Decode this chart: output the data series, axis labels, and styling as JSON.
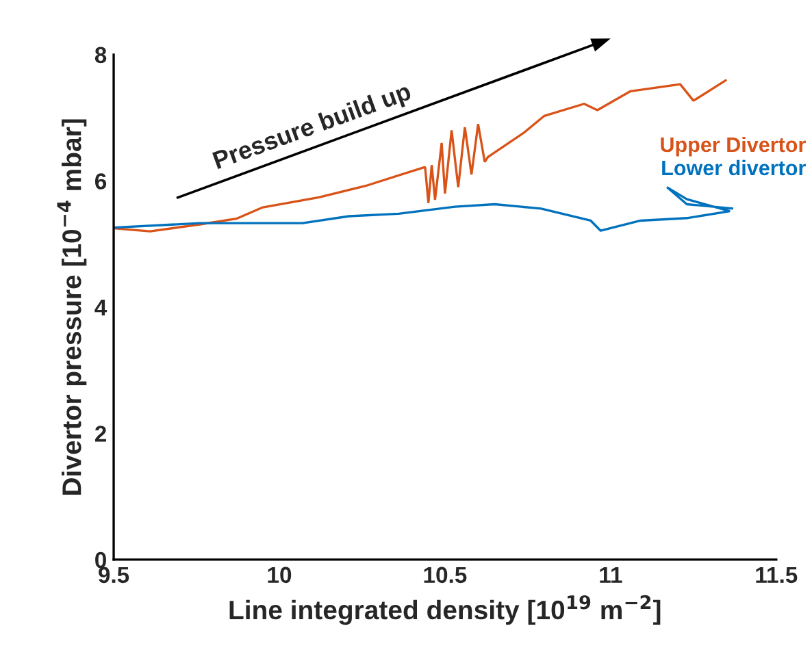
{
  "chart_data": {
    "type": "line",
    "xlabel": "Line integrated density [10$^{19}$ m$^{−2}$]",
    "ylabel": "Divertor pressure [10$^{−4}$ mbar]",
    "annotations": [
      "Pressure build up"
    ],
    "xlim": [
      9.5,
      11.5
    ],
    "xticks": [
      9.5,
      10,
      10.5,
      11,
      11.5
    ],
    "ylim": [
      0,
      8
    ],
    "yticks": [
      0,
      2,
      4,
      6,
      8
    ],
    "grid": false,
    "legend": false,
    "series": [
      {
        "name": "Upper Divertor",
        "color": "#d95319",
        "x": [
          9.5,
          9.61,
          9.76,
          9.87,
          9.95,
          10.12,
          10.26,
          10.44,
          10.45,
          10.46,
          10.47,
          10.49,
          10.5,
          10.52,
          10.54,
          10.56,
          10.58,
          10.6,
          10.62,
          10.63,
          10.74,
          10.8,
          10.92,
          10.96,
          11.06,
          11.21,
          11.25,
          11.35
        ],
        "values": [
          5.25,
          5.2,
          5.31,
          5.4,
          5.58,
          5.74,
          5.92,
          6.22,
          5.65,
          6.25,
          5.7,
          6.6,
          5.8,
          6.8,
          5.9,
          6.85,
          6.1,
          6.9,
          6.3,
          6.38,
          6.77,
          7.03,
          7.22,
          7.12,
          7.42,
          7.53,
          7.27,
          7.6
        ]
      },
      {
        "name": "Lower divertor",
        "color": "#0072bd",
        "x": [
          9.5,
          9.76,
          9.91,
          10.07,
          10.21,
          10.36,
          10.53,
          10.65,
          10.79,
          10.94,
          10.97,
          11.09,
          11.23,
          11.36,
          11.23,
          11.17,
          11.23,
          11.37
        ],
        "values": [
          5.26,
          5.33,
          5.33,
          5.33,
          5.44,
          5.48,
          5.59,
          5.63,
          5.56,
          5.37,
          5.21,
          5.37,
          5.41,
          5.52,
          5.71,
          5.9,
          5.63,
          5.56
        ]
      }
    ]
  }
}
